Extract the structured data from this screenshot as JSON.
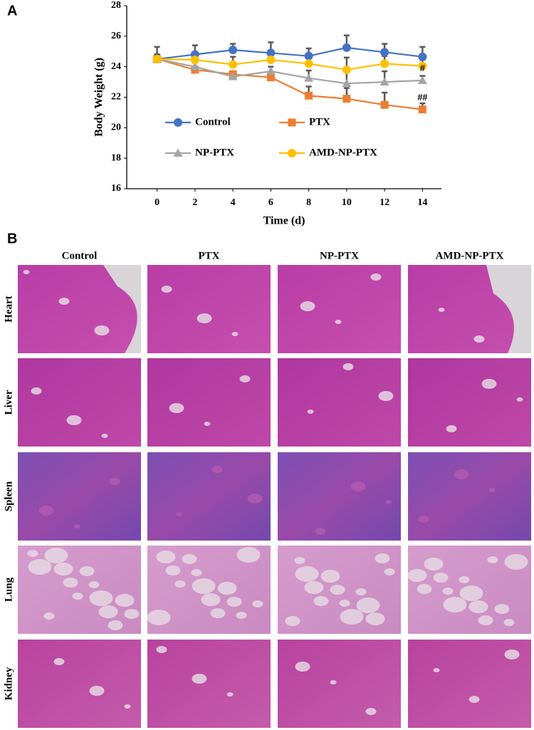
{
  "chart_data": {
    "type": "line",
    "x_label": "Time (d)",
    "y_label": "Body Weight (g)",
    "x": [
      0,
      2,
      4,
      6,
      8,
      10,
      12,
      14
    ],
    "series": [
      {
        "name": "Control",
        "color": "#4472c4",
        "marker": "circle",
        "values": [
          24.5,
          24.8,
          25.1,
          24.9,
          24.7,
          25.25,
          24.95,
          24.65
        ],
        "errors": [
          0.8,
          0.6,
          0.4,
          0.7,
          0.5,
          0.8,
          0.55,
          0.65
        ]
      },
      {
        "name": "PTX",
        "color": "#ed7d31",
        "marker": "square",
        "values": [
          24.5,
          23.8,
          23.5,
          23.3,
          22.1,
          21.9,
          21.5,
          21.2
        ],
        "errors": [
          0.3,
          0.2,
          0.2,
          0.3,
          0.6,
          0.7,
          0.8,
          0.4
        ]
      },
      {
        "name": "NP-PTX",
        "color": "#a5a5a5",
        "marker": "triangle",
        "values": [
          24.5,
          24.0,
          23.35,
          23.7,
          23.25,
          22.9,
          23.0,
          23.1
        ],
        "errors": [
          0.3,
          0.3,
          0.3,
          0.3,
          0.5,
          0.8,
          0.7,
          0.3
        ]
      },
      {
        "name": "AMD-NP-PTX",
        "color": "#ffc000",
        "marker": "circle",
        "values": [
          24.5,
          24.45,
          24.15,
          24.45,
          24.2,
          23.8,
          24.2,
          24.05
        ],
        "errors": [
          0.3,
          0.4,
          0.5,
          0.5,
          0.6,
          0.8,
          0.5,
          0.4
        ]
      }
    ],
    "annotations": [
      "#",
      "##"
    ],
    "xlim": [
      -1.6,
      15
    ],
    "xticks": [
      0,
      2,
      4,
      6,
      8,
      10,
      12,
      14
    ],
    "ylim": [
      16,
      28
    ],
    "yticks": [
      16,
      18,
      20,
      22,
      24,
      26,
      28
    ],
    "error_color": "#595959"
  },
  "figure": {
    "panel_a": "A",
    "panel_b": "B",
    "columns": [
      "Control",
      "PTX",
      "NP-PTX",
      "AMD-NP-PTX"
    ],
    "rows": [
      "Heart",
      "Liver",
      "Spleen",
      "Lung",
      "Kidney"
    ]
  }
}
